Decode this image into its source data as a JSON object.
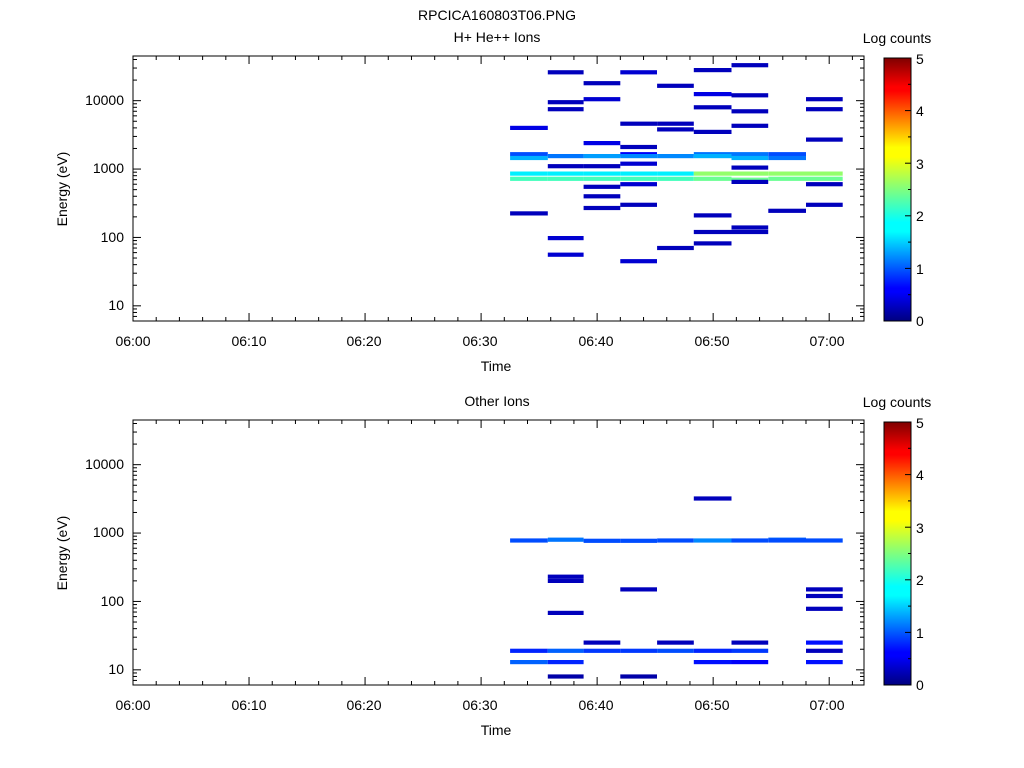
{
  "figure": {
    "title": "RPCICA160803T06.PNG"
  },
  "colors": {
    "scale": [
      "#00007f",
      "#0000ff",
      "#007fff",
      "#00ffff",
      "#7fff7f",
      "#ffff00",
      "#ff7f00",
      "#ff0000",
      "#7f0000"
    ]
  },
  "chart_data": [
    {
      "type": "heatmap",
      "title": "H+ He++ Ions",
      "xlabel": "Time",
      "ylabel": "Energy (eV)",
      "xlim": [
        "06:00",
        "07:03"
      ],
      "ylim": [
        6,
        45000
      ],
      "yscale": "log",
      "x_ticks": [
        "06:00",
        "06:10",
        "06:20",
        "06:30",
        "06:40",
        "06:50",
        "07:00"
      ],
      "y_ticks": [
        "10",
        "100",
        "1000",
        "10000"
      ],
      "colorbar": {
        "label": "Log counts",
        "range": [
          0,
          5
        ],
        "ticks": [
          "0",
          "1",
          "2",
          "3",
          "4",
          "5"
        ]
      },
      "cells": [
        [
          "06:32:30",
          "06:35:45",
          4000,
          0.5
        ],
        [
          "06:32:30",
          "06:35:45",
          1650,
          1.0
        ],
        [
          "06:32:30",
          "06:35:45",
          1450,
          1.5
        ],
        [
          "06:32:30",
          "06:35:45",
          860,
          1.8
        ],
        [
          "06:32:30",
          "06:35:45",
          720,
          2.2
        ],
        [
          "06:32:30",
          "06:35:45",
          225,
          0.3
        ],
        [
          "06:35:45",
          "06:38:50",
          26000,
          0.3
        ],
        [
          "06:35:45",
          "06:38:50",
          9500,
          0.3
        ],
        [
          "06:35:45",
          "06:38:50",
          7500,
          0.3
        ],
        [
          "06:35:45",
          "06:38:50",
          1550,
          1.2
        ],
        [
          "06:35:45",
          "06:38:50",
          1100,
          0.3
        ],
        [
          "06:35:45",
          "06:38:50",
          860,
          1.8
        ],
        [
          "06:35:45",
          "06:38:50",
          720,
          2.2
        ],
        [
          "06:35:45",
          "06:38:50",
          98,
          0.4
        ],
        [
          "06:35:45",
          "06:38:50",
          56,
          0.4
        ],
        [
          "06:38:50",
          "06:42:00",
          18000,
          0.3
        ],
        [
          "06:38:50",
          "06:42:00",
          10500,
          0.4
        ],
        [
          "06:38:50",
          "06:42:00",
          2400,
          0.5
        ],
        [
          "06:38:50",
          "06:42:00",
          1550,
          1.4
        ],
        [
          "06:38:50",
          "06:42:00",
          1100,
          0.3
        ],
        [
          "06:38:50",
          "06:42:00",
          860,
          1.8
        ],
        [
          "06:38:50",
          "06:42:00",
          720,
          2.2
        ],
        [
          "06:38:50",
          "06:42:00",
          550,
          0.3
        ],
        [
          "06:38:50",
          "06:42:00",
          400,
          0.3
        ],
        [
          "06:38:50",
          "06:42:00",
          270,
          0.3
        ],
        [
          "06:42:00",
          "06:45:10",
          26000,
          0.4
        ],
        [
          "06:42:00",
          "06:45:10",
          4600,
          0.3
        ],
        [
          "06:42:00",
          "06:45:10",
          2100,
          0.3
        ],
        [
          "06:42:00",
          "06:45:10",
          1650,
          0.6
        ],
        [
          "06:42:00",
          "06:45:10",
          1550,
          1.3
        ],
        [
          "06:42:00",
          "06:45:10",
          1200,
          0.4
        ],
        [
          "06:42:00",
          "06:45:10",
          860,
          1.8
        ],
        [
          "06:42:00",
          "06:45:10",
          720,
          2.2
        ],
        [
          "06:42:00",
          "06:45:10",
          600,
          0.4
        ],
        [
          "06:42:00",
          "06:45:10",
          300,
          0.3
        ],
        [
          "06:42:00",
          "06:45:10",
          45,
          0.4
        ],
        [
          "06:45:10",
          "06:48:20",
          16500,
          0.3
        ],
        [
          "06:45:10",
          "06:48:20",
          4600,
          0.3
        ],
        [
          "06:45:10",
          "06:48:20",
          3800,
          0.3
        ],
        [
          "06:45:10",
          "06:48:20",
          1550,
          1.3
        ],
        [
          "06:45:10",
          "06:48:20",
          860,
          1.8
        ],
        [
          "06:45:10",
          "06:48:20",
          720,
          2.2
        ],
        [
          "06:45:10",
          "06:48:20",
          70,
          0.3
        ],
        [
          "06:48:20",
          "06:51:35",
          28000,
          0.3
        ],
        [
          "06:48:20",
          "06:51:35",
          12500,
          0.5
        ],
        [
          "06:48:20",
          "06:51:35",
          8000,
          0.3
        ],
        [
          "06:48:20",
          "06:51:35",
          3500,
          0.3
        ],
        [
          "06:48:20",
          "06:51:35",
          1650,
          1.2
        ],
        [
          "06:48:20",
          "06:51:35",
          1550,
          1.5
        ],
        [
          "06:48:20",
          "06:51:35",
          860,
          2.6
        ],
        [
          "06:48:20",
          "06:51:35",
          720,
          2.4
        ],
        [
          "06:48:20",
          "06:51:35",
          210,
          0.3
        ],
        [
          "06:48:20",
          "06:51:35",
          120,
          0.3
        ],
        [
          "06:48:20",
          "06:51:35",
          82,
          0.3
        ],
        [
          "06:51:35",
          "06:54:45",
          33000,
          0.3
        ],
        [
          "06:51:35",
          "06:54:45",
          12000,
          0.3
        ],
        [
          "06:51:35",
          "06:54:45",
          7000,
          0.3
        ],
        [
          "06:51:35",
          "06:54:45",
          4300,
          0.3
        ],
        [
          "06:51:35",
          "06:54:45",
          1650,
          1.2
        ],
        [
          "06:51:35",
          "06:54:45",
          1450,
          1.5
        ],
        [
          "06:51:35",
          "06:54:45",
          1050,
          0.3
        ],
        [
          "06:51:35",
          "06:54:45",
          860,
          2.6
        ],
        [
          "06:51:35",
          "06:54:45",
          700,
          2.4
        ],
        [
          "06:51:35",
          "06:54:45",
          650,
          0.3
        ],
        [
          "06:51:35",
          "06:54:45",
          140,
          0.3
        ],
        [
          "06:51:35",
          "06:54:45",
          120,
          0.3
        ],
        [
          "06:54:45",
          "06:58:00",
          1650,
          1.0
        ],
        [
          "06:54:45",
          "06:58:00",
          1450,
          1.2
        ],
        [
          "06:54:45",
          "06:58:00",
          860,
          2.6
        ],
        [
          "06:54:45",
          "06:58:00",
          720,
          2.4
        ],
        [
          "06:54:45",
          "06:58:00",
          245,
          0.3
        ],
        [
          "06:58:00",
          "07:01:10",
          10500,
          0.3
        ],
        [
          "06:58:00",
          "07:01:10",
          7500,
          0.3
        ],
        [
          "06:58:00",
          "07:01:10",
          2700,
          0.3
        ],
        [
          "06:58:00",
          "07:01:10",
          860,
          2.6
        ],
        [
          "06:58:00",
          "07:01:10",
          720,
          2.4
        ],
        [
          "06:58:00",
          "07:01:10",
          600,
          0.3
        ],
        [
          "06:58:00",
          "07:01:10",
          300,
          0.3
        ]
      ]
    },
    {
      "type": "heatmap",
      "title": "Other Ions",
      "xlabel": "Time",
      "ylabel": "Energy (eV)",
      "xlim": [
        "06:00",
        "07:03"
      ],
      "ylim": [
        6,
        45000
      ],
      "yscale": "log",
      "x_ticks": [
        "06:00",
        "06:10",
        "06:20",
        "06:30",
        "06:40",
        "06:50",
        "07:00"
      ],
      "y_ticks": [
        "10",
        "100",
        "1000",
        "10000"
      ],
      "colorbar": {
        "label": "Log counts",
        "range": [
          0,
          5
        ],
        "ticks": [
          "0",
          "1",
          "2",
          "3",
          "4",
          "5"
        ]
      },
      "cells": [
        [
          "06:32:30",
          "06:35:45",
          780,
          1.0
        ],
        [
          "06:32:30",
          "06:35:45",
          19,
          0.8
        ],
        [
          "06:32:30",
          "06:35:45",
          13,
          1.1
        ],
        [
          "06:35:45",
          "06:38:50",
          800,
          1.2
        ],
        [
          "06:35:45",
          "06:38:50",
          230,
          0.3
        ],
        [
          "06:35:45",
          "06:38:50",
          200,
          0.3
        ],
        [
          "06:35:45",
          "06:38:50",
          68,
          0.3
        ],
        [
          "06:35:45",
          "06:38:50",
          19,
          1.1
        ],
        [
          "06:35:45",
          "06:38:50",
          13,
          0.8
        ],
        [
          "06:35:45",
          "06:38:50",
          8,
          0.2
        ],
        [
          "06:38:50",
          "06:42:00",
          770,
          1.0
        ],
        [
          "06:38:50",
          "06:42:00",
          25,
          0.3
        ],
        [
          "06:38:50",
          "06:42:00",
          19,
          0.9
        ],
        [
          "06:42:00",
          "06:45:10",
          770,
          1.0
        ],
        [
          "06:42:00",
          "06:45:10",
          150,
          0.3
        ],
        [
          "06:42:00",
          "06:45:10",
          19,
          0.9
        ],
        [
          "06:42:00",
          "06:45:10",
          8,
          0.2
        ],
        [
          "06:45:10",
          "06:48:20",
          780,
          1.0
        ],
        [
          "06:45:10",
          "06:48:20",
          25,
          0.3
        ],
        [
          "06:45:10",
          "06:48:20",
          19,
          1.0
        ],
        [
          "06:48:20",
          "06:51:35",
          3200,
          0.3
        ],
        [
          "06:48:20",
          "06:51:35",
          780,
          1.3
        ],
        [
          "06:48:20",
          "06:51:35",
          19,
          0.8
        ],
        [
          "06:48:20",
          "06:51:35",
          13,
          0.7
        ],
        [
          "06:51:35",
          "06:54:45",
          780,
          1.0
        ],
        [
          "06:51:35",
          "06:54:45",
          25,
          0.3
        ],
        [
          "06:51:35",
          "06:54:45",
          19,
          0.9
        ],
        [
          "06:51:35",
          "06:54:45",
          13,
          0.6
        ],
        [
          "06:54:45",
          "06:58:00",
          800,
          1.1
        ],
        [
          "06:54:45",
          "06:58:00",
          780,
          1.0
        ],
        [
          "06:58:00",
          "07:01:10",
          780,
          1.0
        ],
        [
          "06:58:00",
          "07:01:10",
          150,
          0.3
        ],
        [
          "06:58:00",
          "07:01:10",
          120,
          0.3
        ],
        [
          "06:58:00",
          "07:01:10",
          78,
          0.3
        ],
        [
          "06:58:00",
          "07:01:10",
          25,
          0.7
        ],
        [
          "06:58:00",
          "07:01:10",
          19,
          0.3
        ],
        [
          "06:58:00",
          "07:01:10",
          13,
          0.7
        ]
      ]
    }
  ]
}
